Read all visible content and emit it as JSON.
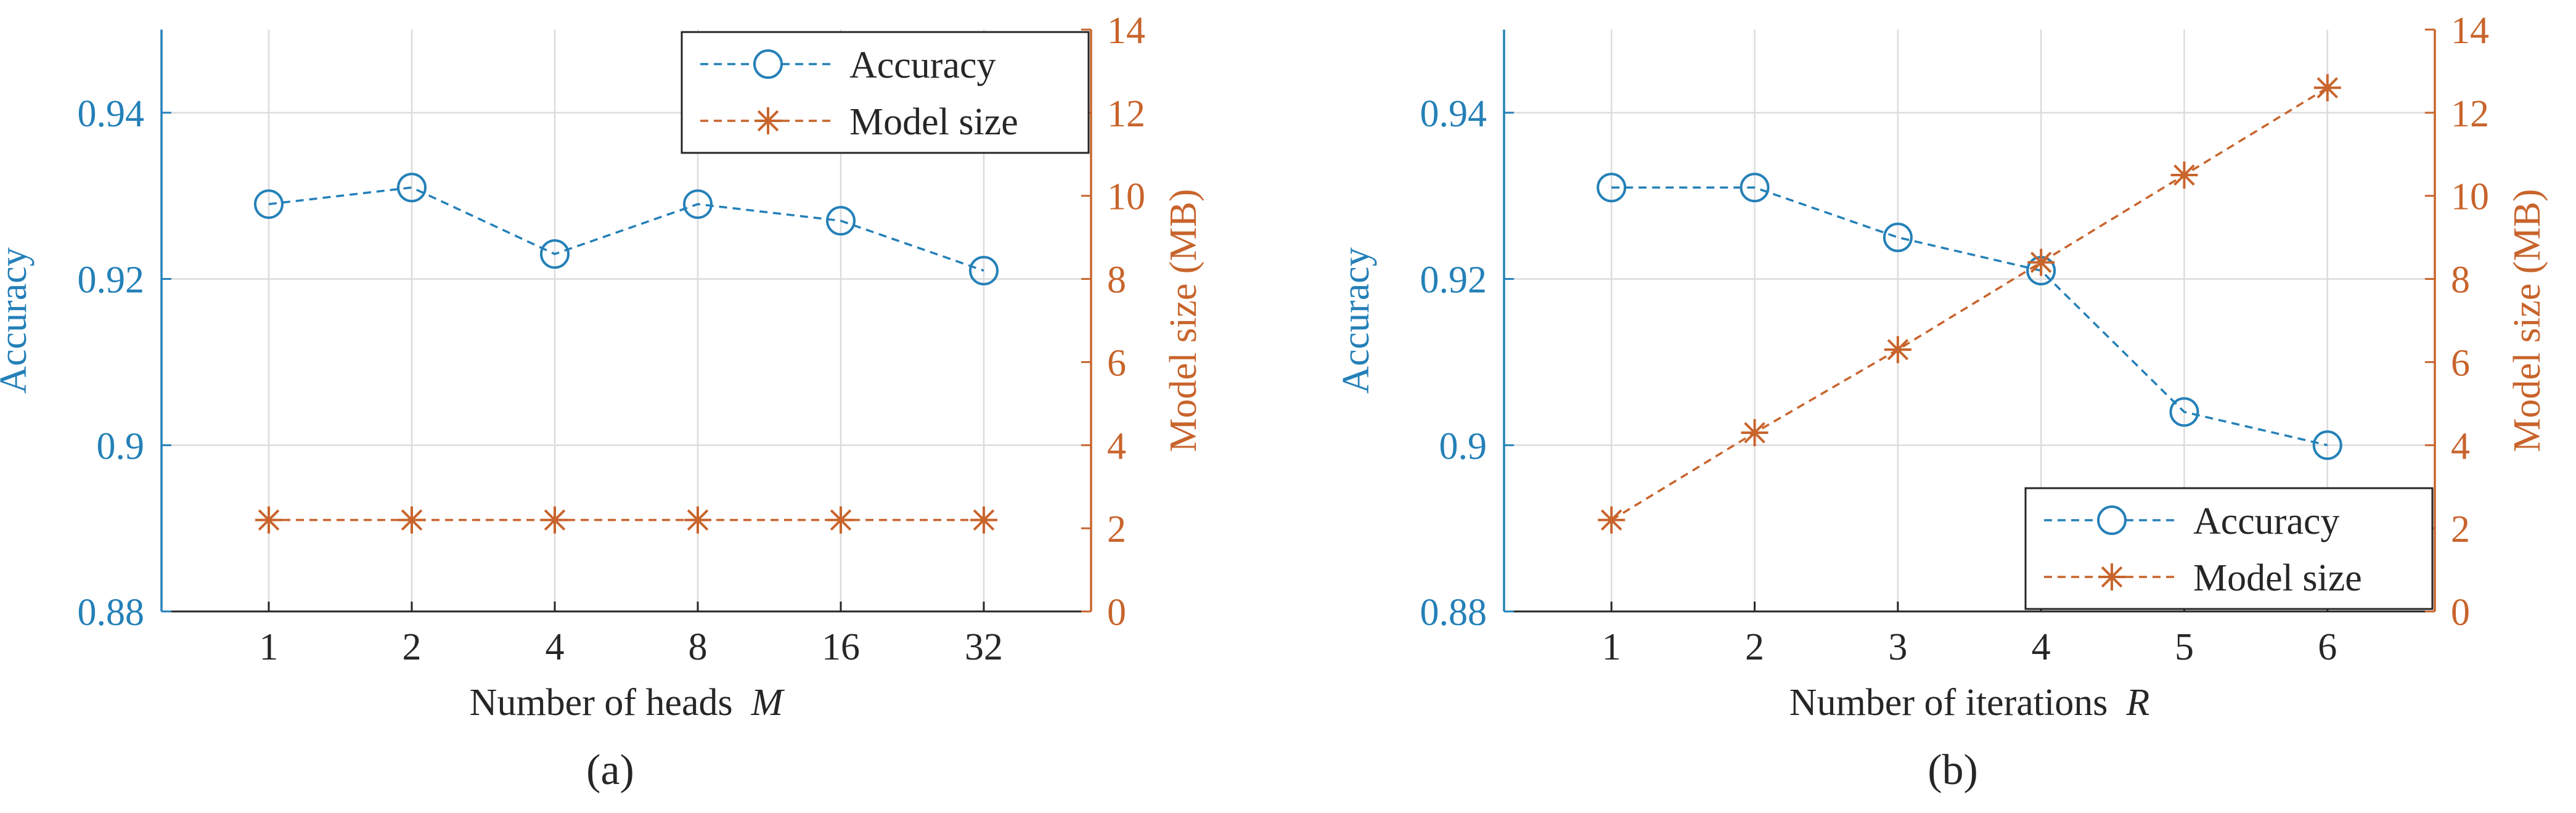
{
  "colors": {
    "accuracy": "#2480b8",
    "model_size": "#c8642c",
    "axis": "#262626",
    "grid": "#dcdcdc"
  },
  "chart_data": [
    {
      "type": "line",
      "panel_label": "(a)",
      "xlabel_text": "Number of heads",
      "xlabel_var": "M",
      "categories": [
        "1",
        "2",
        "4",
        "8",
        "16",
        "32"
      ],
      "ylabel": "Accuracy",
      "y2label": "Model size (MB)",
      "ylim": [
        0.88,
        0.95
      ],
      "y2lim": [
        0,
        14
      ],
      "yticks": [
        0.88,
        0.9,
        0.92,
        0.94
      ],
      "ytick_labels": [
        "0.88",
        "0.9",
        "0.92",
        "0.94"
      ],
      "y2ticks": [
        0,
        2,
        4,
        6,
        8,
        10,
        12,
        14
      ],
      "y2tick_labels": [
        "0",
        "2",
        "4",
        "6",
        "8",
        "10",
        "12",
        "14"
      ],
      "legend_position": "top-right",
      "series": [
        {
          "name": "Accuracy",
          "axis": "left",
          "marker": "circle",
          "values": [
            0.929,
            0.931,
            0.923,
            0.929,
            0.927,
            0.921
          ]
        },
        {
          "name": "Model size",
          "axis": "right",
          "marker": "asterisk",
          "values": [
            2.2,
            2.2,
            2.2,
            2.2,
            2.2,
            2.2
          ]
        }
      ]
    },
    {
      "type": "line",
      "panel_label": "(b)",
      "xlabel_text": "Number of iterations",
      "xlabel_var": "R",
      "categories": [
        "1",
        "2",
        "3",
        "4",
        "5",
        "6"
      ],
      "ylabel": "Accuracy",
      "y2label": "Model size (MB)",
      "ylim": [
        0.88,
        0.95
      ],
      "y2lim": [
        0,
        14
      ],
      "yticks": [
        0.88,
        0.9,
        0.92,
        0.94
      ],
      "ytick_labels": [
        "0.88",
        "0.9",
        "0.92",
        "0.94"
      ],
      "y2ticks": [
        0,
        2,
        4,
        6,
        8,
        10,
        12,
        14
      ],
      "y2tick_labels": [
        "0",
        "2",
        "4",
        "6",
        "8",
        "10",
        "12",
        "14"
      ],
      "legend_position": "bottom-right",
      "series": [
        {
          "name": "Accuracy",
          "axis": "left",
          "marker": "circle",
          "values": [
            0.931,
            0.931,
            0.925,
            0.921,
            0.904,
            0.9
          ]
        },
        {
          "name": "Model size",
          "axis": "right",
          "marker": "asterisk",
          "values": [
            2.2,
            4.3,
            6.3,
            8.4,
            10.5,
            12.6
          ]
        }
      ]
    }
  ]
}
